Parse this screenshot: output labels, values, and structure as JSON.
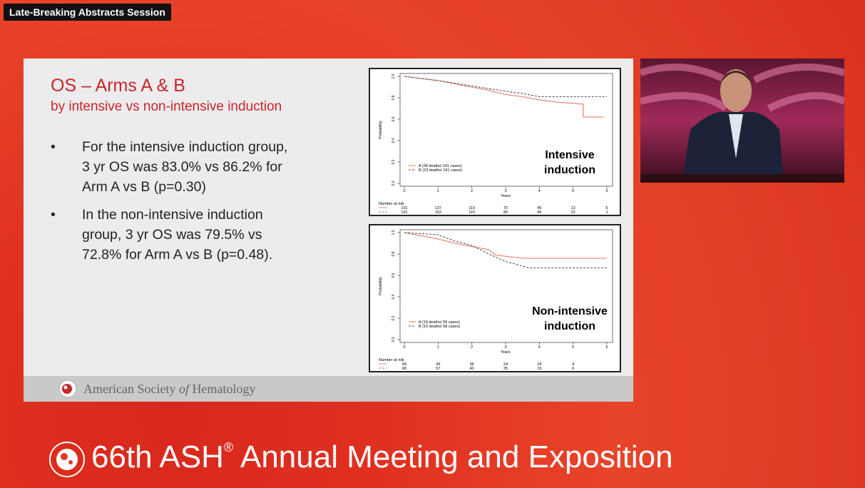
{
  "banner": "Late-Breaking Abstracts Session",
  "slide": {
    "title": "OS – Arms A & B",
    "subtitle": "by intensive vs non-intensive induction",
    "bullets": [
      "For the intensive induction group, 3 yr OS was 83.0% vs 86.2% for Arm A vs B (p=0.30)",
      "In the non-intensive induction group, 3 yr OS was 79.5% vs 72.8% for Arm A vs B (p=0.48)."
    ],
    "footer": [
      "American Society",
      "of",
      "Hematology"
    ]
  },
  "chart_data": [
    {
      "type": "line",
      "annotation": [
        "Intensive",
        "induction"
      ],
      "xlabel": "Years",
      "ylabel": "Probability",
      "xlim": [
        0,
        6
      ],
      "xticks": [
        0,
        1,
        2,
        3,
        4,
        5,
        6
      ],
      "ylim": [
        0,
        1
      ],
      "yticks": [
        {
          "value": 0,
          "label": "0.0"
        },
        0.2,
        0.4,
        0.6,
        0.8,
        {
          "value": 1,
          "label": "1.0"
        }
      ],
      "series": [
        {
          "name": "A (28 deaths/ 191 cases)",
          "color": "#e8735a",
          "x": [
            0,
            0.5,
            1,
            1.5,
            2,
            2.5,
            3,
            3.5,
            4,
            4.5,
            5.3,
            5.3,
            5.9
          ],
          "values": [
            1,
            0.98,
            0.96,
            0.93,
            0.9,
            0.87,
            0.83,
            0.81,
            0.78,
            0.76,
            0.74,
            0.62,
            0.62
          ]
        },
        {
          "name": "B (23 deaths/ 191 cases)",
          "color": "#555555",
          "x": [
            0,
            1,
            2,
            3,
            3.5,
            4,
            6
          ],
          "values": [
            1,
            0.96,
            0.91,
            0.86,
            0.84,
            0.81,
            0.81
          ]
        }
      ],
      "risk_table": {
        "title": "Number at risk",
        "rows": [
          [
            191,
            137,
            110,
            75,
            45,
            13,
            6
          ],
          [
            191,
            152,
            115,
            80,
            45,
            22,
            1
          ]
        ]
      }
    },
    {
      "type": "line",
      "annotation": [
        "Non-intensive",
        "induction"
      ],
      "xlabel": "Years",
      "ylabel": "Probability",
      "xlim": [
        0,
        6
      ],
      "xticks": [
        0,
        1,
        2,
        3,
        4,
        5,
        6
      ],
      "ylim": [
        0,
        1
      ],
      "yticks": [
        {
          "value": 0,
          "label": "0.0"
        },
        0.2,
        0.4,
        0.6,
        0.8,
        {
          "value": 1,
          "label": "1.0"
        }
      ],
      "series": [
        {
          "name": "A (19 deaths/ 68 cases)",
          "color": "#e8735a",
          "x": [
            0,
            0.5,
            1,
            1.5,
            2,
            2.5,
            2.7,
            3.5,
            6
          ],
          "values": [
            1,
            0.97,
            0.94,
            0.9,
            0.87,
            0.84,
            0.79,
            0.76,
            0.76
          ]
        },
        {
          "name": "B (15 deaths/ 68 cases)",
          "color": "#555555",
          "x": [
            0,
            1,
            1.5,
            2,
            2.5,
            3,
            3.7,
            6
          ],
          "values": [
            1,
            0.98,
            0.92,
            0.88,
            0.8,
            0.73,
            0.67,
            0.67
          ]
        }
      ],
      "risk_table": {
        "title": "Number at risk",
        "rows": [
          [
            68,
            49,
            36,
            24,
            18,
            4
          ],
          [
            68,
            57,
            40,
            25,
            15,
            6
          ]
        ]
      }
    }
  ],
  "event": {
    "title": "66th ASH",
    "mark": "®",
    "rest": "Annual Meeting and Exposition"
  }
}
